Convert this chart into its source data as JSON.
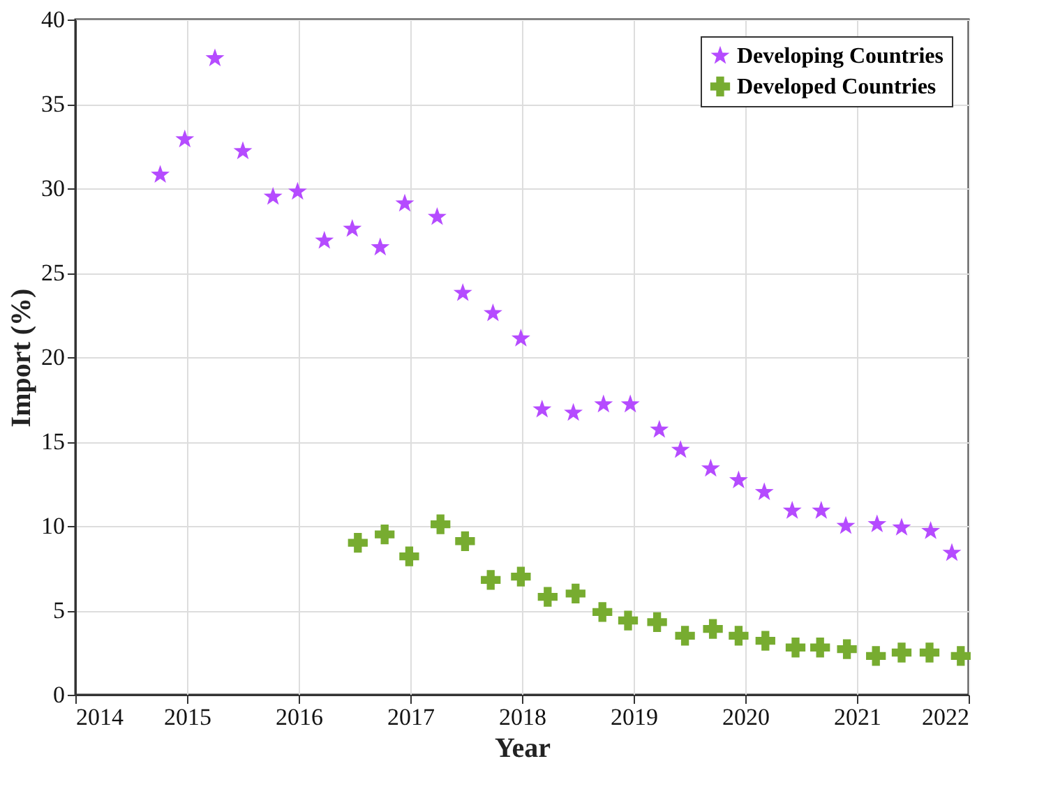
{
  "chart_data": {
    "type": "scatter",
    "xlabel": "Year",
    "ylabel": "Import (%)",
    "xlim": [
      2014,
      2022
    ],
    "xticks": [
      2014,
      2015,
      2016,
      2017,
      2018,
      2019,
      2020,
      2021,
      2022
    ],
    "ylim": [
      0,
      40
    ],
    "yticks": [
      0,
      5,
      10,
      15,
      20,
      25,
      30,
      35,
      40
    ],
    "grid": true,
    "legend": "top right",
    "series": [
      {
        "name": "Developing Countries",
        "color": "#b54bff",
        "marker": "star",
        "x": [
          2014.76,
          2014.98,
          2015.25,
          2015.5,
          2015.77,
          2015.99,
          2016.23,
          2016.48,
          2016.73,
          2016.95,
          2017.24,
          2017.47,
          2017.74,
          2017.99,
          2018.18,
          2018.46,
          2018.73,
          2018.97,
          2019.23,
          2019.42,
          2019.69,
          2019.94,
          2020.17,
          2020.42,
          2020.68,
          2020.9,
          2021.18,
          2021.4,
          2021.66,
          2021.85
        ],
        "values": [
          30.8,
          32.9,
          37.7,
          32.2,
          29.5,
          29.8,
          26.9,
          27.6,
          26.5,
          29.1,
          28.3,
          23.8,
          22.6,
          21.1,
          16.9,
          16.7,
          17.2,
          17.2,
          15.7,
          14.5,
          13.4,
          12.7,
          12.0,
          10.9,
          10.9,
          10.0,
          10.1,
          9.9,
          9.7,
          8.4
        ]
      },
      {
        "name": "Developed Countries",
        "color": "#77ac30",
        "marker": "cross",
        "x": [
          2016.53,
          2016.77,
          2016.99,
          2017.27,
          2017.49,
          2017.72,
          2017.99,
          2018.23,
          2018.48,
          2018.72,
          2018.95,
          2019.21,
          2019.46,
          2019.71,
          2019.94,
          2020.18,
          2020.45,
          2020.67,
          2020.91,
          2021.17,
          2021.4,
          2021.65,
          2021.93
        ],
        "values": [
          9.0,
          9.5,
          8.2,
          10.1,
          9.1,
          6.8,
          7.0,
          5.8,
          6.0,
          4.9,
          4.4,
          4.3,
          3.5,
          3.9,
          3.5,
          3.2,
          2.8,
          2.8,
          2.7,
          2.3,
          2.5,
          2.5,
          2.3
        ]
      }
    ]
  }
}
